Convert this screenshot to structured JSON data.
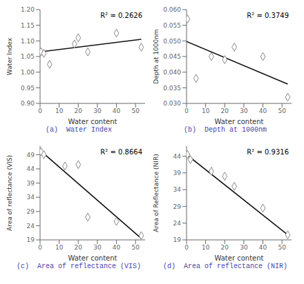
{
  "chart_data": [
    {
      "type": "scatter",
      "title": "(a)  Water Index",
      "annotation": "R² = 0.2626",
      "xlabel": "Water content",
      "ylabel": "Water Index",
      "xlim": [
        0,
        55
      ],
      "xticks": [
        0,
        10,
        20,
        30,
        40,
        50
      ],
      "ylim": [
        0.9,
        1.2
      ],
      "yticks": [
        {
          "value": 0.9,
          "label": "0.90"
        },
        {
          "value": 0.95,
          "label": "0.95"
        },
        {
          "value": 1.0,
          "label": "1.00"
        },
        {
          "value": 1.05,
          "label": "1.05"
        },
        {
          "value": 1.1,
          "label": "1.10"
        },
        {
          "value": 1.15,
          "label": "1.15"
        },
        {
          "value": 1.2,
          "label": "1.20"
        }
      ],
      "grid": false,
      "series": [
        {
          "type": "line",
          "line_style": "solid",
          "color": "#111111",
          "x": [
            0,
            53
          ],
          "values": [
            1.065,
            1.105
          ]
        },
        {
          "type": "scatter",
          "marker": "diamond",
          "color": "#888888",
          "x": [
            0.5,
            2,
            5,
            18,
            20,
            25,
            40,
            53
          ],
          "values": [
            1.065,
            1.06,
            1.025,
            1.09,
            1.11,
            1.065,
            1.125,
            1.08
          ]
        }
      ]
    },
    {
      "type": "scatter",
      "title": "(b)  Depth at 1000nm",
      "annotation": "R² = 0.3749",
      "xlabel": "Water content",
      "ylabel": "Depth at 1000nm",
      "xlim": [
        0,
        55
      ],
      "xticks": [
        0,
        10,
        20,
        30,
        40,
        50
      ],
      "ylim": [
        0.03,
        0.06
      ],
      "yticks": [
        {
          "value": 0.03,
          "label": "0.030"
        },
        {
          "value": 0.035,
          "label": "0.035"
        },
        {
          "value": 0.04,
          "label": "0.040"
        },
        {
          "value": 0.045,
          "label": "0.045"
        },
        {
          "value": 0.05,
          "label": "0.050"
        },
        {
          "value": 0.055,
          "label": "0.055"
        },
        {
          "value": 0.06,
          "label": "0.060"
        }
      ],
      "grid": false,
      "series": [
        {
          "type": "line",
          "line_style": "solid",
          "color": "#111111",
          "x": [
            0,
            53
          ],
          "values": [
            0.0498,
            0.0362
          ]
        },
        {
          "type": "scatter",
          "marker": "diamond",
          "color": "#888888",
          "x": [
            0.5,
            5,
            13,
            20,
            25,
            40,
            53
          ],
          "values": [
            0.057,
            0.038,
            0.045,
            0.044,
            0.048,
            0.045,
            0.032
          ]
        }
      ]
    },
    {
      "type": "scatter",
      "title": "(c)  Area of reflectance (VIS)",
      "annotation": "R² = 0.8664",
      "xlabel": "Water content",
      "ylabel": "Area of reflectance (VIS)",
      "xlim": [
        0,
        55
      ],
      "xticks": [
        0,
        10,
        20,
        30,
        40,
        50
      ],
      "ylim": [
        19,
        52
      ],
      "yticks": [
        19,
        24,
        29,
        34,
        39,
        44,
        49
      ],
      "grid": false,
      "series": [
        {
          "type": "line",
          "line_style": "solid",
          "color": "#111111",
          "x": [
            0,
            53
          ],
          "values": [
            50.5,
            19.5
          ]
        },
        {
          "type": "scatter",
          "marker": "diamond",
          "color": "#888888",
          "x": [
            0.5,
            2,
            13,
            20,
            25,
            40,
            53
          ],
          "values": [
            50.0,
            49.0,
            45.0,
            45.5,
            27.0,
            25.5,
            20.5
          ]
        }
      ]
    },
    {
      "type": "scatter",
      "title": "(d)  Area of reflectance (NIR)",
      "annotation": "R² = 0.9316",
      "xlabel": "Water content",
      "ylabel": "Area of Reflectance (NIR)",
      "xlim": [
        0,
        55
      ],
      "xticks": [
        0,
        10,
        20,
        30,
        40,
        50
      ],
      "ylim": [
        19,
        47
      ],
      "yticks": [
        19,
        24,
        29,
        34,
        39,
        44
      ],
      "grid": false,
      "series": [
        {
          "type": "line",
          "line_style": "solid",
          "color": "#111111",
          "x": [
            0,
            53
          ],
          "values": [
            44.5,
            20.5
          ]
        },
        {
          "type": "scatter",
          "marker": "diamond",
          "color": "#888888",
          "x": [
            0.5,
            2,
            13,
            20,
            25,
            40,
            53
          ],
          "values": [
            44.5,
            43.0,
            39.5,
            38.0,
            35.0,
            28.5,
            20.5
          ]
        }
      ]
    }
  ]
}
